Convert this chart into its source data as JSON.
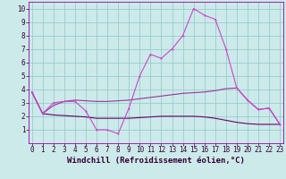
{
  "xlabel": "Windchill (Refroidissement éolien,°C)",
  "bg_color": "#cceaea",
  "grid_color": "#99cccc",
  "line_color_main": "#cc44cc",
  "line_color_upper": "#993399",
  "line_color_lower": "#660066",
  "x": [
    0,
    1,
    2,
    3,
    4,
    5,
    6,
    7,
    8,
    9,
    10,
    11,
    12,
    13,
    14,
    15,
    16,
    17,
    18,
    19,
    20,
    21,
    22,
    23
  ],
  "y_main": [
    3.8,
    2.2,
    3.0,
    3.1,
    3.1,
    2.4,
    1.0,
    1.0,
    0.7,
    2.6,
    5.0,
    6.6,
    6.3,
    7.0,
    8.0,
    10.0,
    9.5,
    9.2,
    7.0,
    4.1,
    3.2,
    2.5,
    2.6,
    1.4
  ],
  "y_upper": [
    3.8,
    2.2,
    2.8,
    3.1,
    3.2,
    3.15,
    3.1,
    3.1,
    3.15,
    3.2,
    3.3,
    3.4,
    3.5,
    3.6,
    3.7,
    3.75,
    3.8,
    3.9,
    4.05,
    4.1,
    3.2,
    2.5,
    2.6,
    1.4
  ],
  "y_lower": [
    3.8,
    2.2,
    2.1,
    2.05,
    2.0,
    1.95,
    1.85,
    1.85,
    1.85,
    1.85,
    1.9,
    1.95,
    2.0,
    2.0,
    2.0,
    2.0,
    1.95,
    1.85,
    1.7,
    1.55,
    1.45,
    1.4,
    1.4,
    1.4
  ],
  "xlim": [
    0,
    23
  ],
  "ylim": [
    0,
    10.5
  ],
  "yticks": [
    1,
    2,
    3,
    4,
    5,
    6,
    7,
    8,
    9,
    10
  ],
  "xticks": [
    0,
    1,
    2,
    3,
    4,
    5,
    6,
    7,
    8,
    9,
    10,
    11,
    12,
    13,
    14,
    15,
    16,
    17,
    18,
    19,
    20,
    21,
    22,
    23
  ],
  "tick_fontsize": 5.5,
  "xlabel_fontsize": 6.5,
  "marker_size": 2.5,
  "linewidth": 0.8
}
